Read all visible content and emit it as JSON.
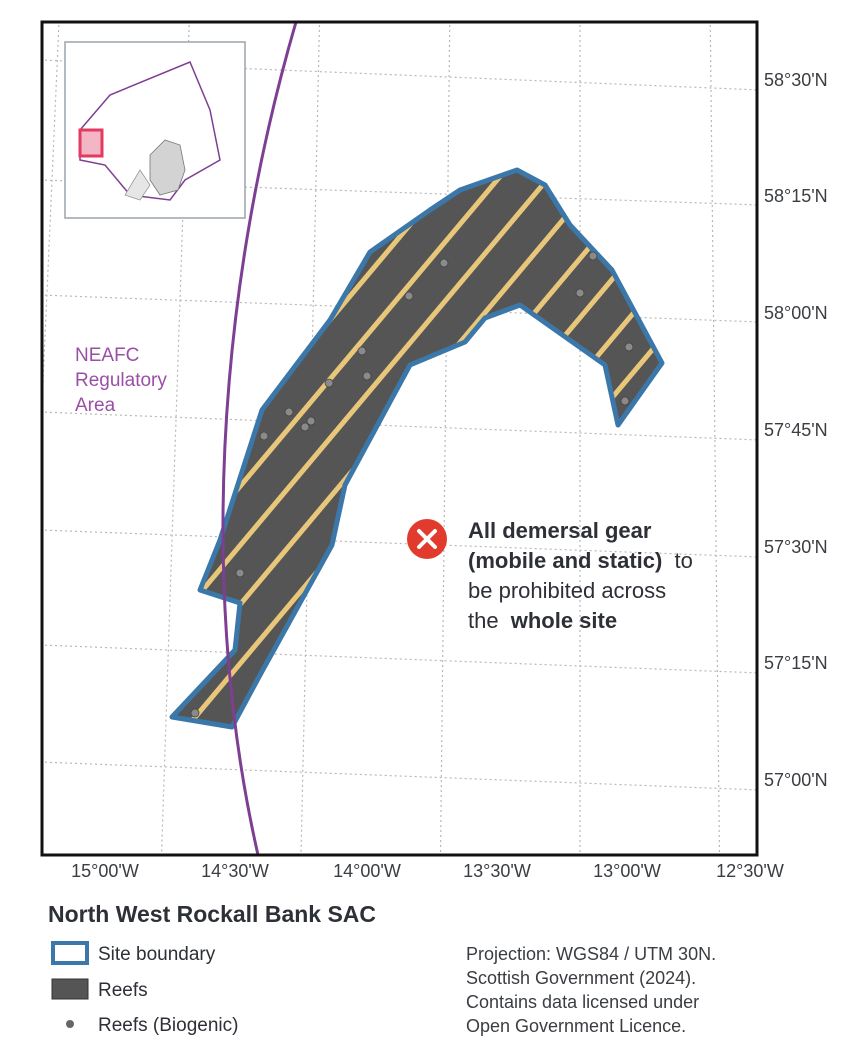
{
  "map": {
    "lat_labels": [
      "58°30'N",
      "58°15'N",
      "58°00'N",
      "57°45'N",
      "57°30'N",
      "57°15'N",
      "57°00'N"
    ],
    "lon_labels": [
      "15°00'W",
      "14°30'W",
      "14°00'W",
      "13°30'W",
      "13°00'W",
      "12°30'W"
    ],
    "region_label": [
      "NEAFC",
      "Regulatory",
      "Area"
    ],
    "annotation": [
      "All demersal gear",
      "(mobile and static)",
      "to",
      "be prohibited across",
      "the",
      "whole site"
    ]
  },
  "title": "North West Rockall Bank SAC",
  "legend": [
    "Site boundary",
    "Reefs",
    "Reefs (Biogenic)"
  ],
  "note": [
    "Projection: WGS84 / UTM 30N.",
    "Scottish Government (2024).",
    "Contains data licensed under",
    "Open Government Licence."
  ]
}
